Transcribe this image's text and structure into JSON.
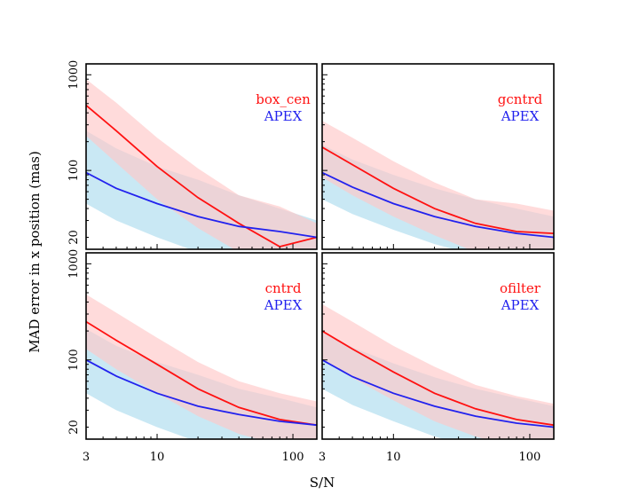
{
  "figure": {
    "xlabel": "S/N",
    "ylabel": "MAD error in x position (mas)"
  },
  "colors": {
    "method": "#ff1111",
    "apex": "#2222ee",
    "method_band": "#ffc8c8",
    "apex_band": "#bfe4f2",
    "overlap_band": "#d2c8d8"
  },
  "chart_data": [
    {
      "type": "line",
      "panel": "top-left",
      "xscale": "log",
      "yscale": "log",
      "xlim": [
        3,
        150
      ],
      "ylim": [
        15,
        1300
      ],
      "yticks": [
        20,
        100,
        1000
      ],
      "xticks": [
        3,
        10,
        100
      ],
      "legend": [
        "box_cen",
        "APEX"
      ],
      "legend_placement": "top-right",
      "series": [
        {
          "name": "box_cen",
          "x": [
            3,
            5,
            10,
            20,
            40,
            80,
            150
          ],
          "y": [
            480,
            260,
            110,
            52,
            28,
            16,
            20
          ],
          "lower": [
            230,
            120,
            50,
            25,
            14,
            8,
            11
          ],
          "upper": [
            900,
            510,
            220,
            105,
            55,
            42,
            28
          ]
        },
        {
          "name": "APEX",
          "x": [
            3,
            5,
            10,
            20,
            40,
            80,
            150
          ],
          "y": [
            95,
            65,
            45,
            33,
            26,
            23,
            20
          ],
          "lower": [
            45,
            30,
            20,
            14,
            11,
            9,
            8
          ],
          "upper": [
            260,
            170,
            110,
            80,
            55,
            40,
            30
          ]
        }
      ]
    },
    {
      "type": "line",
      "panel": "top-right",
      "xscale": "log",
      "yscale": "log",
      "xlim": [
        3,
        150
      ],
      "ylim": [
        15,
        1300
      ],
      "yticks": [
        20,
        100,
        1000
      ],
      "xticks": [
        3,
        10,
        100
      ],
      "legend": [
        "gcntrd",
        "APEX"
      ],
      "legend_placement": "top-right",
      "series": [
        {
          "name": "gcntrd",
          "x": [
            3,
            5,
            10,
            20,
            40,
            80,
            150
          ],
          "y": [
            175,
            115,
            65,
            40,
            28,
            23,
            22
          ],
          "lower": [
            85,
            55,
            33,
            21,
            14,
            12,
            12
          ],
          "upper": [
            330,
            220,
            125,
            75,
            50,
            45,
            38
          ]
        },
        {
          "name": "APEX",
          "x": [
            3,
            5,
            10,
            20,
            40,
            80,
            150
          ],
          "y": [
            95,
            67,
            45,
            33,
            26,
            22,
            20
          ],
          "lower": [
            50,
            35,
            24,
            17,
            13,
            11,
            10
          ],
          "upper": [
            185,
            130,
            90,
            65,
            50,
            40,
            33
          ]
        }
      ]
    },
    {
      "type": "line",
      "panel": "bottom-left",
      "xscale": "log",
      "yscale": "log",
      "xlim": [
        3,
        150
      ],
      "ylim": [
        15,
        1300
      ],
      "yticks": [
        20,
        100,
        1000
      ],
      "xticks": [
        3,
        10,
        100
      ],
      "legend": [
        "cntrd",
        "APEX"
      ],
      "legend_placement": "top-right",
      "series": [
        {
          "name": "cntrd",
          "x": [
            3,
            5,
            10,
            20,
            40,
            80,
            150
          ],
          "y": [
            250,
            160,
            90,
            50,
            32,
            24,
            21
          ],
          "lower": [
            130,
            80,
            45,
            26,
            17,
            13,
            13
          ],
          "upper": [
            480,
            310,
            170,
            95,
            60,
            45,
            37
          ]
        },
        {
          "name": "APEX",
          "x": [
            3,
            5,
            10,
            20,
            40,
            80,
            150
          ],
          "y": [
            100,
            68,
            45,
            33,
            27,
            23,
            21
          ],
          "lower": [
            45,
            30,
            20,
            14,
            11,
            9,
            8
          ],
          "upper": [
            210,
            140,
            95,
            70,
            50,
            40,
            32
          ]
        }
      ]
    },
    {
      "type": "line",
      "panel": "bottom-right",
      "xscale": "log",
      "yscale": "log",
      "xlim": [
        3,
        150
      ],
      "ylim": [
        15,
        1300
      ],
      "yticks": [
        20,
        100,
        1000
      ],
      "xticks": [
        3,
        10,
        100
      ],
      "legend": [
        "ofilter",
        "APEX"
      ],
      "legend_placement": "top-right",
      "series": [
        {
          "name": "ofilter",
          "x": [
            3,
            5,
            10,
            20,
            40,
            80,
            150
          ],
          "y": [
            200,
            130,
            75,
            45,
            31,
            24,
            21
          ],
          "lower": [
            100,
            65,
            38,
            23,
            16,
            12,
            12
          ],
          "upper": [
            380,
            250,
            140,
            85,
            55,
            42,
            35
          ]
        },
        {
          "name": "APEX",
          "x": [
            3,
            5,
            10,
            20,
            40,
            80,
            150
          ],
          "y": [
            100,
            67,
            45,
            33,
            26,
            22,
            20
          ],
          "lower": [
            50,
            34,
            23,
            16,
            12,
            10,
            9
          ],
          "upper": [
            200,
            135,
            92,
            66,
            50,
            40,
            33
          ]
        }
      ]
    }
  ]
}
